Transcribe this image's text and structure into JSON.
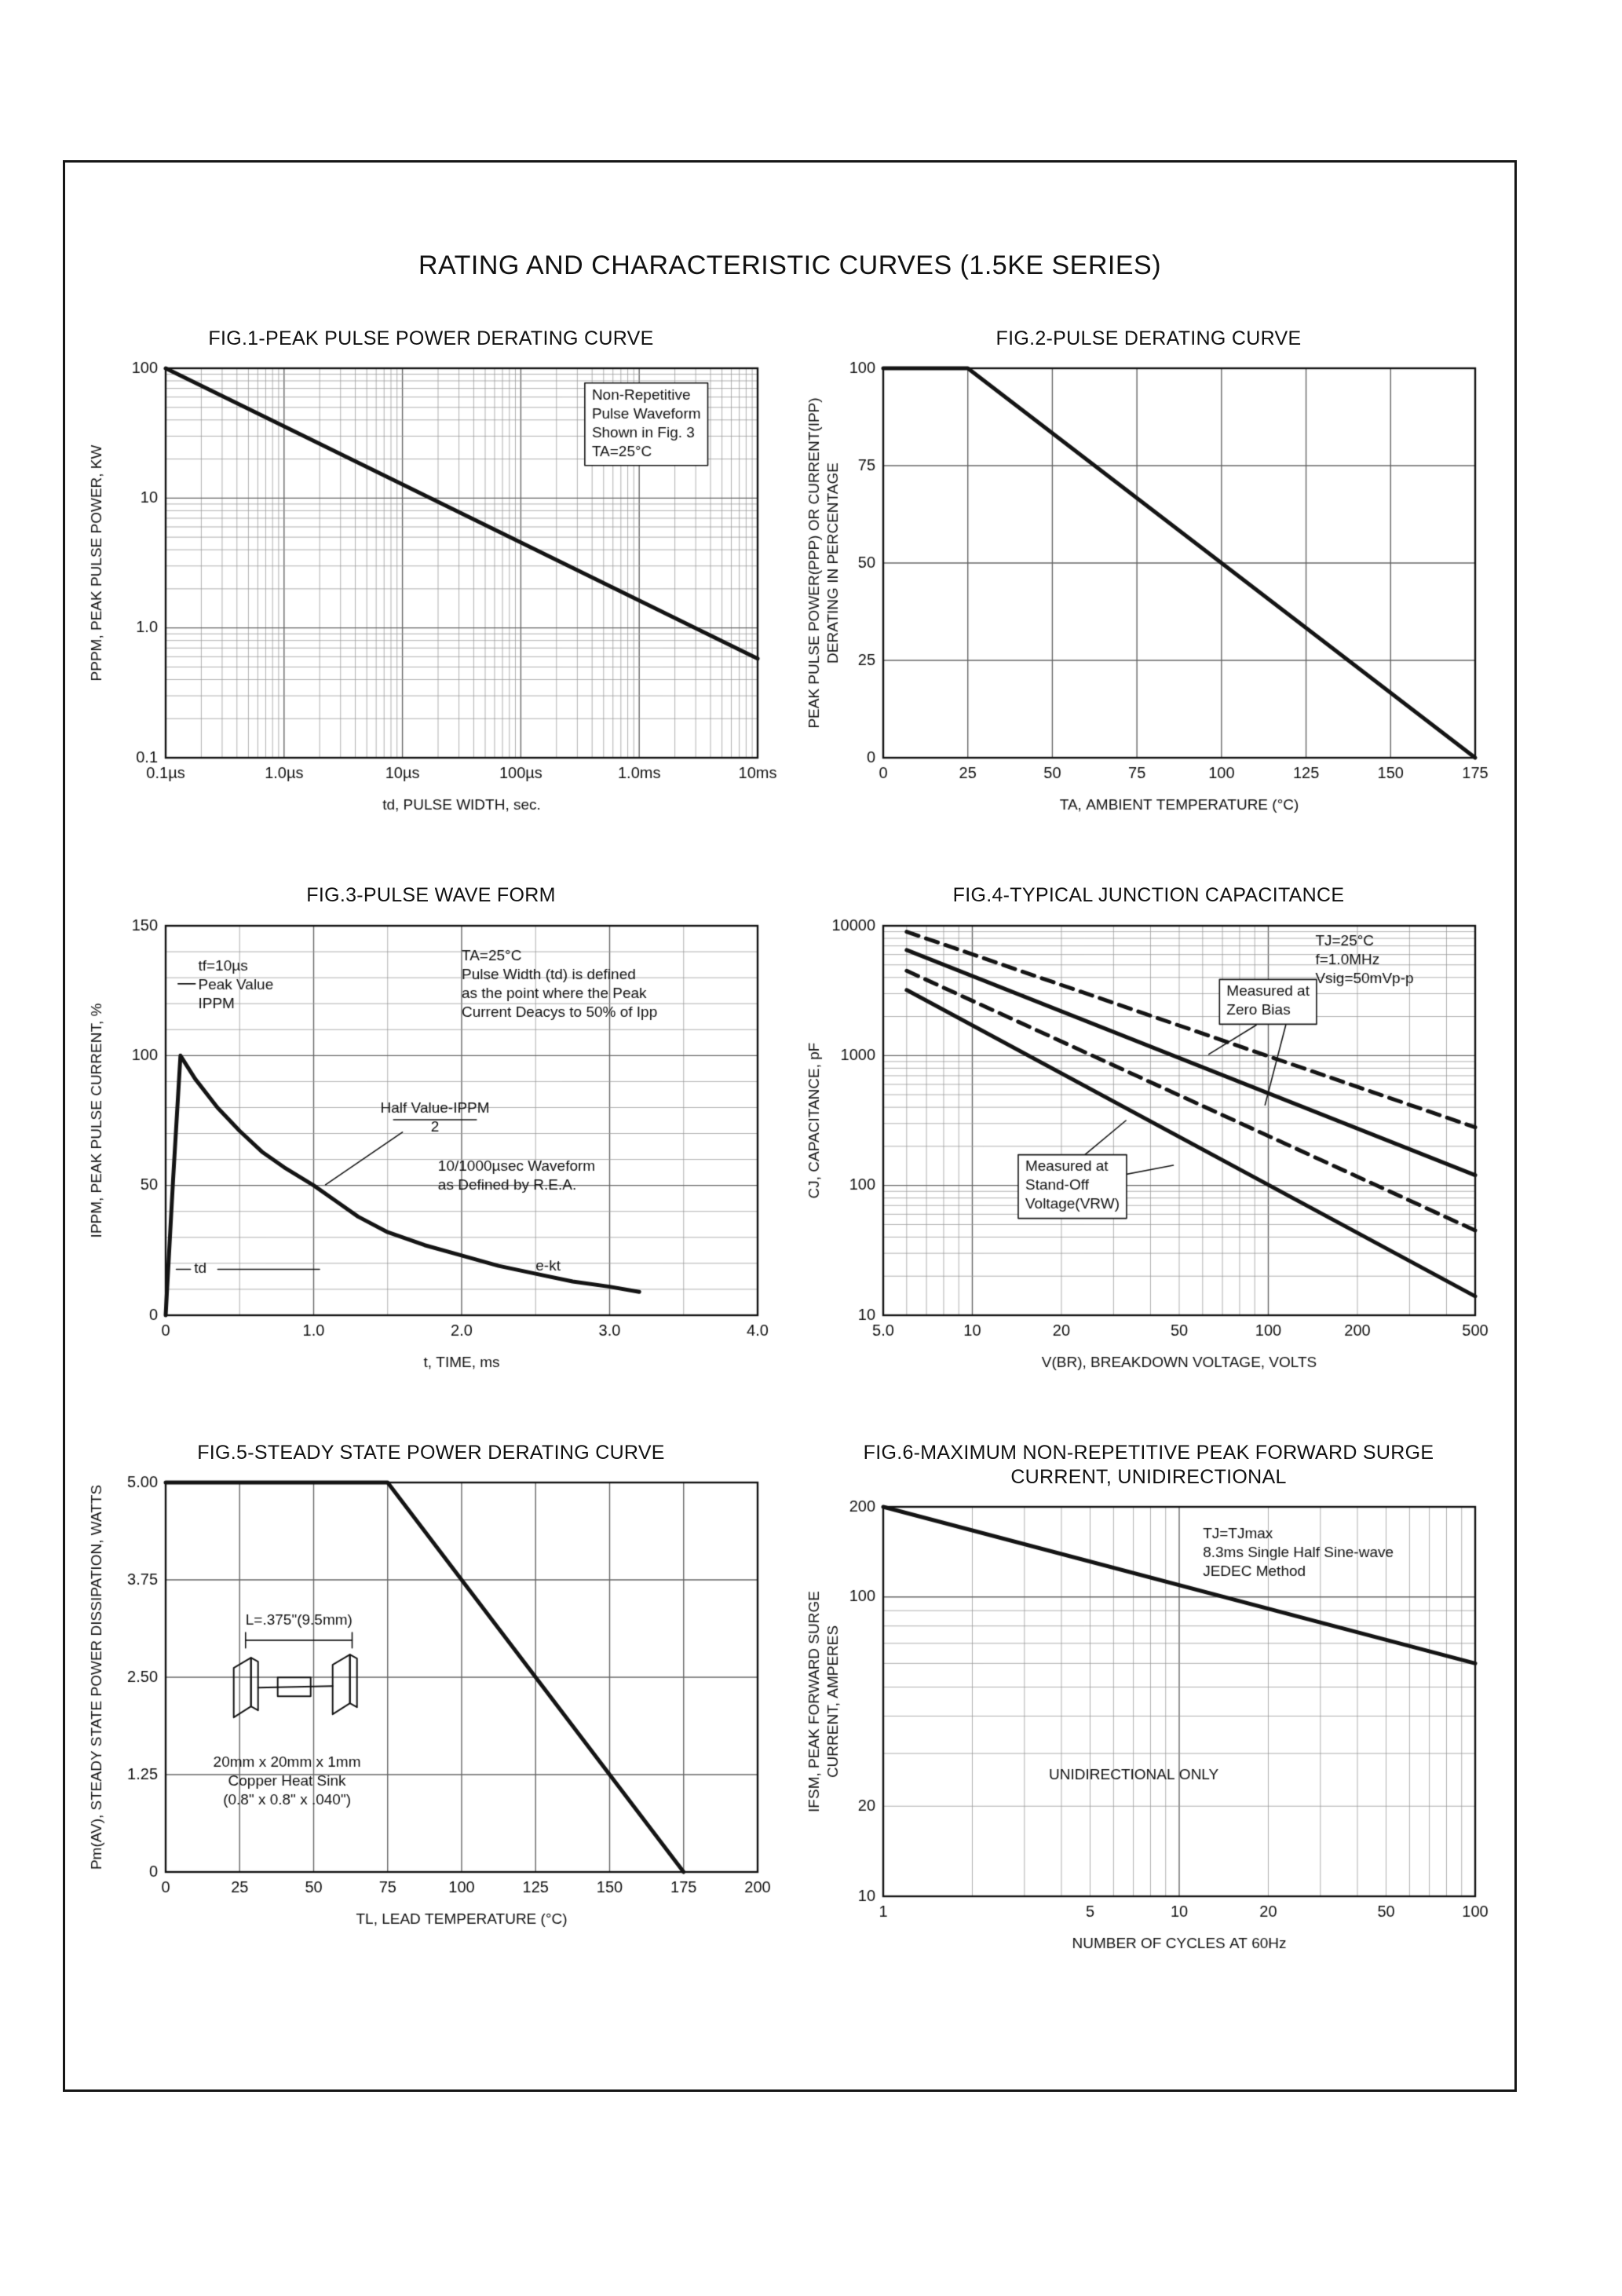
{
  "page_title": "RATING AND CHARACTERISTIC CURVES (1.5KE SERIES)",
  "chart_data": [
    {
      "type": "line",
      "title": "FIG.1-PEAK PULSE POWER DERATING CURVE",
      "xlabel": "td, PULSE WIDTH, sec.",
      "ylabel": "PPPM, PEAK PULSE POWER, KW",
      "xscale": "log",
      "yscale": "log",
      "xlim": [
        1e-07,
        0.01
      ],
      "ylim": [
        0.1,
        100
      ],
      "xticks": [
        {
          "v": 1e-07,
          "l": "0.1µs"
        },
        {
          "v": 1e-06,
          "l": "1.0µs"
        },
        {
          "v": 1e-05,
          "l": "10µs"
        },
        {
          "v": 0.0001,
          "l": "100µs"
        },
        {
          "v": 0.001,
          "l": "1.0ms"
        },
        {
          "v": 0.01,
          "l": "10ms"
        }
      ],
      "yticks": [
        {
          "v": 100,
          "l": "100"
        },
        {
          "v": 10,
          "l": "10"
        },
        {
          "v": 1,
          "l": "1.0"
        },
        {
          "v": 0.1,
          "l": "0.1"
        }
      ],
      "series": [
        {
          "name": "peak pulse power",
          "dash": false,
          "points": [
            [
              1e-07,
              100
            ],
            [
              0.01,
              0.58
            ]
          ]
        }
      ],
      "annotations": [
        {
          "lines": [
            "Non-Repetitive",
            "Pulse Waveform",
            "Shown in Fig. 3",
            "TA=25°C"
          ],
          "fx": 0.72,
          "fy": 0.05,
          "boxed": true
        }
      ],
      "leaders": []
    },
    {
      "type": "line",
      "title": "FIG.2-PULSE DERATING CURVE",
      "xlabel": "TA, AMBIENT TEMPERATURE (°C)",
      "ylabel": "PEAK PULSE POWER(PPP) OR CURRENT(IPP)\nDERATING IN PERCENTAGE",
      "xscale": "linear",
      "yscale": "linear",
      "xlim": [
        0,
        175
      ],
      "ylim": [
        0,
        100
      ],
      "xgrid_major": [
        25,
        50,
        75,
        100,
        125,
        150
      ],
      "ygrid_major": [
        25,
        50,
        75
      ],
      "xticks": [
        {
          "v": 0,
          "l": "0"
        },
        {
          "v": 25,
          "l": "25"
        },
        {
          "v": 50,
          "l": "50"
        },
        {
          "v": 75,
          "l": "75"
        },
        {
          "v": 100,
          "l": "100"
        },
        {
          "v": 125,
          "l": "125"
        },
        {
          "v": 150,
          "l": "150"
        },
        {
          "v": 175,
          "l": "175"
        }
      ],
      "yticks": [
        {
          "v": 100,
          "l": "100"
        },
        {
          "v": 75,
          "l": "75"
        },
        {
          "v": 50,
          "l": "50"
        },
        {
          "v": 25,
          "l": "25"
        },
        {
          "v": 0,
          "l": "0"
        }
      ],
      "series": [
        {
          "name": "pulse derating",
          "dash": false,
          "points": [
            [
              0,
              100
            ],
            [
              25,
              100
            ],
            [
              175,
              0
            ]
          ]
        }
      ],
      "annotations": [],
      "leaders": []
    },
    {
      "type": "line",
      "title": "FIG.3-PULSE WAVE FORM",
      "xlabel": "t, TIME, ms",
      "ylabel": "IPPM, PEAK PULSE CURRENT, %",
      "xscale": "linear",
      "yscale": "linear",
      "xlim": [
        0,
        4
      ],
      "ylim": [
        0,
        150
      ],
      "xgrid": [
        0.5,
        1.5,
        2.5,
        3.5
      ],
      "xgrid_major": [
        1,
        2,
        3
      ],
      "ygrid": [
        10,
        20,
        30,
        40,
        60,
        70,
        80,
        90,
        110,
        120,
        130,
        140
      ],
      "ygrid_major": [
        50,
        100
      ],
      "xticks": [
        {
          "v": 0,
          "l": "0"
        },
        {
          "v": 1,
          "l": "1.0"
        },
        {
          "v": 2,
          "l": "2.0"
        },
        {
          "v": 3,
          "l": "3.0"
        },
        {
          "v": 4,
          "l": "4.0"
        }
      ],
      "yticks": [
        {
          "v": 150,
          "l": "150"
        },
        {
          "v": 100,
          "l": "100"
        },
        {
          "v": 50,
          "l": "50"
        },
        {
          "v": 0,
          "l": "0"
        }
      ],
      "series": [
        {
          "name": "10/1000us pulse waveform",
          "dash": false,
          "points": [
            [
              0,
              0
            ],
            [
              0.05,
              52
            ],
            [
              0.1,
              100
            ],
            [
              0.2,
              91
            ],
            [
              0.35,
              80
            ],
            [
              0.5,
              71
            ],
            [
              0.65,
              63
            ],
            [
              0.8,
              57
            ],
            [
              1,
              50
            ],
            [
              1.15,
              44
            ],
            [
              1.3,
              38
            ],
            [
              1.5,
              32
            ],
            [
              1.75,
              27
            ],
            [
              2,
              23
            ],
            [
              2.25,
              19
            ],
            [
              2.5,
              16
            ],
            [
              2.75,
              13
            ],
            [
              3,
              11
            ],
            [
              3.2,
              9
            ]
          ]
        }
      ],
      "annotations": [
        {
          "lines": [
            "tf=10µs",
            "Peak Value",
            "IPPM"
          ],
          "fx": 0.055,
          "fy": 0.085
        },
        {
          "lines": [
            "TA=25°C",
            "Pulse Width (td) is defined",
            "as the point where the Peak",
            "Current Deacys to 50% of Ipp"
          ],
          "fx": 0.5,
          "fy": 0.06
        },
        {
          "lines": [
            "Half Value-IPPM",
            "2"
          ],
          "fx": 0.455,
          "fy": 0.45,
          "align": "center"
        },
        {
          "lines": [
            "10/1000µsec Waveform",
            "as Defined by R.E.A."
          ],
          "fx": 0.46,
          "fy": 0.6
        },
        {
          "lines": [
            "td"
          ],
          "fx": 0.048,
          "fy": 0.862
        },
        {
          "lines": [
            "e-kt"
          ],
          "fx": 0.625,
          "fy": 0.855
        }
      ],
      "leaders": [
        [
          0.021,
          0.149,
          0.05,
          0.149
        ],
        [
          0.385,
          0.498,
          0.525,
          0.498
        ],
        [
          0.4,
          0.53,
          0.27,
          0.665
        ],
        [
          0.018,
          0.882,
          0.042,
          0.882
        ],
        [
          0.088,
          0.882,
          0.26,
          0.882
        ]
      ]
    },
    {
      "type": "line",
      "title": "FIG.4-TYPICAL JUNCTION CAPACITANCE",
      "xlabel": "V(BR), BREAKDOWN VOLTAGE, VOLTS",
      "ylabel": "CJ, CAPACITANCE, pF",
      "xscale": "log",
      "yscale": "log",
      "xlim": [
        5,
        500
      ],
      "ylim": [
        10,
        10000
      ],
      "xticks": [
        {
          "v": 5,
          "l": "5.0"
        },
        {
          "v": 10,
          "l": "10"
        },
        {
          "v": 20,
          "l": "20"
        },
        {
          "v": 50,
          "l": "50"
        },
        {
          "v": 100,
          "l": "100"
        },
        {
          "v": 200,
          "l": "200"
        },
        {
          "v": 500,
          "l": "500"
        }
      ],
      "yticks": [
        {
          "v": 10000,
          "l": "10000"
        },
        {
          "v": 1000,
          "l": "1000"
        },
        {
          "v": 100,
          "l": "100"
        },
        {
          "v": 10,
          "l": "10"
        }
      ],
      "series": [
        {
          "name": "measured at zero bias (upper)",
          "dash": true,
          "points": [
            [
              6,
              9000
            ],
            [
              500,
              280
            ]
          ]
        },
        {
          "name": "measured at stand-off voltage (upper)",
          "dash": false,
          "points": [
            [
              6,
              6500
            ],
            [
              500,
              120
            ]
          ]
        },
        {
          "name": "measured at zero bias (lower)",
          "dash": true,
          "points": [
            [
              6,
              4500
            ],
            [
              500,
              45
            ]
          ]
        },
        {
          "name": "measured at stand-off voltage (lower)",
          "dash": false,
          "points": [
            [
              6,
              3200
            ],
            [
              500,
              14
            ]
          ]
        }
      ],
      "annotations": [
        {
          "lines": [
            "TJ=25°C",
            "f=1.0MHz",
            "Vsig=50mVp-p"
          ],
          "fx": 0.73,
          "fy": 0.02
        },
        {
          "lines": [
            "Measured at",
            "Zero Bias"
          ],
          "fx": 0.58,
          "fy": 0.15,
          "boxed": true
        },
        {
          "lines": [
            "Measured at",
            "Stand-Off",
            "Voltage(VRW)"
          ],
          "fx": 0.24,
          "fy": 0.6,
          "boxed": true
        }
      ],
      "leaders": [
        [
          0.63,
          0.255,
          0.55,
          0.33
        ],
        [
          0.68,
          0.255,
          0.645,
          0.46
        ],
        [
          0.335,
          0.595,
          0.41,
          0.5
        ],
        [
          0.335,
          0.66,
          0.49,
          0.615
        ]
      ]
    },
    {
      "type": "line",
      "title": "FIG.5-STEADY STATE POWER DERATING CURVE",
      "xlabel": "TL, LEAD TEMPERATURE (°C)",
      "ylabel": "Pm(AV), STEADY STATE POWER DISSIPATION, WATTS",
      "xscale": "linear",
      "yscale": "linear",
      "xlim": [
        0,
        200
      ],
      "ylim": [
        0,
        5
      ],
      "xgrid_major": [
        25,
        50,
        75,
        100,
        125,
        150,
        175
      ],
      "ygrid_major": [
        1.25,
        2.5,
        3.75
      ],
      "xticks": [
        {
          "v": 0,
          "l": "0"
        },
        {
          "v": 25,
          "l": "25"
        },
        {
          "v": 50,
          "l": "50"
        },
        {
          "v": 75,
          "l": "75"
        },
        {
          "v": 100,
          "l": "100"
        },
        {
          "v": 125,
          "l": "125"
        },
        {
          "v": 150,
          "l": "150"
        },
        {
          "v": 175,
          "l": "175"
        },
        {
          "v": 200,
          "l": "200"
        }
      ],
      "yticks": [
        {
          "v": 5,
          "l": "5.00"
        },
        {
          "v": 3.75,
          "l": "3.75"
        },
        {
          "v": 2.5,
          "l": "2.50"
        },
        {
          "v": 1.25,
          "l": "1.25"
        },
        {
          "v": 0,
          "l": "0"
        }
      ],
      "series": [
        {
          "name": "steady state power derating",
          "dash": false,
          "points": [
            [
              0,
              5
            ],
            [
              75,
              5
            ],
            [
              175,
              0
            ]
          ]
        }
      ],
      "annotations": [
        {
          "lines": [
            "L=.375\"(9.5mm)"
          ],
          "fx": 0.135,
          "fy": 0.335
        },
        {
          "lines": [
            "20mm x 20mm x 1mm",
            "Copper Heat Sink",
            "(0.8\" x 0.8\" x .040\")"
          ],
          "fx": 0.205,
          "fy": 0.7,
          "align": "center"
        }
      ],
      "leaders": [
        [
          0.135,
          0.405,
          0.315,
          0.405
        ],
        [
          0.135,
          0.385,
          0.135,
          0.425
        ],
        [
          0.315,
          0.385,
          0.315,
          0.425
        ]
      ],
      "heatsink": {
        "fx": 0.115,
        "fy": 0.45
      }
    },
    {
      "type": "line",
      "title": "FIG.6-MAXIMUM NON-REPETITIVE PEAK FORWARD SURGE CURRENT, UNIDIRECTIONAL",
      "xlabel": "NUMBER OF CYCLES AT 60Hz",
      "ylabel": "IFSM, PEAK FORWARD SURGE\nCURRENT, AMPERES",
      "xscale": "log",
      "yscale": "log",
      "xlim": [
        1,
        100
      ],
      "ylim": [
        10,
        200
      ],
      "xticks": [
        {
          "v": 1,
          "l": "1"
        },
        {
          "v": 5,
          "l": "5"
        },
        {
          "v": 10,
          "l": "10"
        },
        {
          "v": 20,
          "l": "20"
        },
        {
          "v": 50,
          "l": "50"
        },
        {
          "v": 100,
          "l": "100"
        }
      ],
      "yticks": [
        {
          "v": 200,
          "l": "200"
        },
        {
          "v": 100,
          "l": "100"
        },
        {
          "v": 20,
          "l": "20"
        },
        {
          "v": 10,
          "l": "10"
        }
      ],
      "series": [
        {
          "name": "peak forward surge current",
          "dash": false,
          "points": [
            [
              1,
              200
            ],
            [
              100,
              60
            ]
          ]
        }
      ],
      "annotations": [
        {
          "lines": [
            "TJ=TJmax",
            "8.3ms Single Half Sine-wave",
            "JEDEC Method"
          ],
          "fx": 0.54,
          "fy": 0.05
        },
        {
          "lines": [
            "UNIDIRECTIONAL ONLY"
          ],
          "fx": 0.28,
          "fy": 0.67
        }
      ],
      "leaders": []
    }
  ]
}
